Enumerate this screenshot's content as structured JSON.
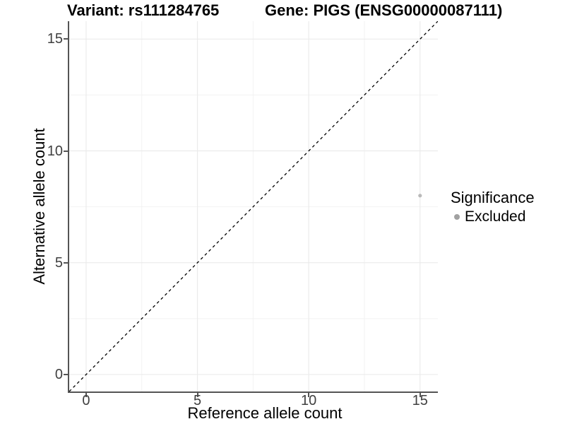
{
  "chart_data": {
    "type": "scatter",
    "titles": {
      "left": "Variant: rs111284765",
      "right": "Gene: PIGS (ENSG00000087111)"
    },
    "xlabel": "Reference allele count",
    "ylabel": "Alternative allele count",
    "xlim": [
      -0.76,
      15.8
    ],
    "ylim": [
      -0.76,
      15.8
    ],
    "xticks": [
      0,
      5,
      10,
      15
    ],
    "yticks": [
      0,
      5,
      10,
      15
    ],
    "xtick_labels": [
      "0",
      "5",
      "10",
      "15"
    ],
    "ytick_labels": [
      "0",
      "5",
      "10",
      "15"
    ],
    "minor_ticks": [
      2.5,
      7.5,
      12.5
    ],
    "grid": "major+minor",
    "reference_line": {
      "slope": 1,
      "intercept": 0,
      "style": "dashed",
      "color": "#000000"
    },
    "points": [
      {
        "x": 15,
        "y": 8,
        "series": "Excluded",
        "color": "#b9b9b9",
        "radius_px": 2.6
      }
    ],
    "legend": {
      "title": "Significance",
      "position": "right",
      "entries": [
        {
          "label": "Excluded",
          "color": "#a1a1a1"
        }
      ]
    },
    "colors": {
      "grid_major": "#ebebeb",
      "grid_minor": "#f2f2f2",
      "axis_line": "#545454",
      "tick_text": "#404040",
      "title_text": "#000000"
    }
  }
}
